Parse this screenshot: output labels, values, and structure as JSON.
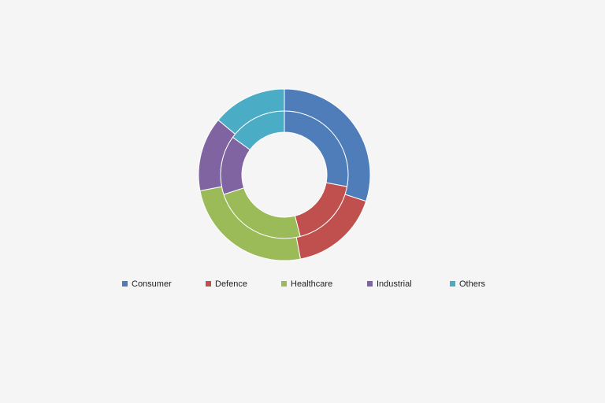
{
  "chart_data": {
    "type": "donut",
    "categories": [
      "Consumer",
      "Defence",
      "Healthcare",
      "Industrial",
      "Others"
    ],
    "colors": [
      "#4f7dba",
      "#c0504d",
      "#9bbb59",
      "#8064a2",
      "#4bacc6"
    ],
    "series": [
      {
        "values": [
          28,
          18,
          24,
          15,
          15
        ]
      },
      {
        "values": [
          30,
          17,
          25,
          14,
          14
        ]
      }
    ],
    "legend": "bottom"
  }
}
